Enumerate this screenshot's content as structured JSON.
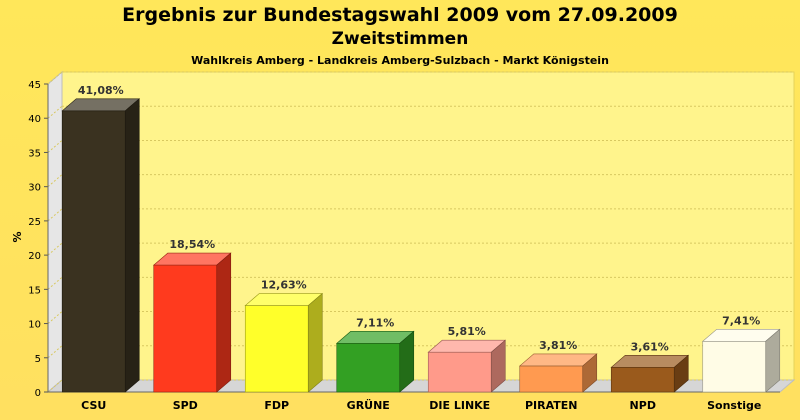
{
  "title": "Ergebnis zur Bundestagswahl 2009 vom 27.09.2009",
  "subtitle": "Zweitstimmen",
  "caption": "Wahlkreis Amberg - Landkreis Amberg-Sulzbach - Markt Königstein",
  "chart_data": {
    "type": "bar",
    "categories": [
      "CSU",
      "SPD",
      "FDP",
      "GRÜNE",
      "DIE LINKE",
      "PIRATEN",
      "NPD",
      "Sonstige"
    ],
    "values": [
      41.08,
      18.54,
      12.63,
      7.11,
      5.81,
      3.81,
      3.61,
      7.41
    ],
    "value_labels": [
      "41,08%",
      "18,54%",
      "12,63%",
      "7,11%",
      "5,81%",
      "3,81%",
      "3,61%",
      "7,41%"
    ],
    "colors": [
      "#3a3220",
      "#ff3a1e",
      "#ffff2a",
      "#33a023",
      "#ff9a8a",
      "#ff9a50",
      "#9a5a1c",
      "#fffce6"
    ],
    "ylabel": "%",
    "xlabel": "",
    "ylim": [
      0,
      45
    ],
    "yticks": [
      0,
      5,
      10,
      15,
      20,
      25,
      30,
      35,
      40,
      45
    ],
    "grid": true,
    "legend": "none"
  }
}
